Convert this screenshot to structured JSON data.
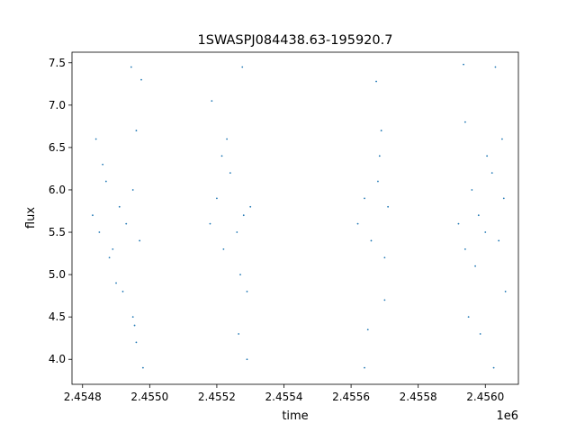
{
  "chart_data": {
    "type": "scatter",
    "title": "1SWASPJ084438.63-195920.7",
    "xlabel": "time",
    "ylabel": "flux",
    "x_offset_label": "1e6",
    "xlim": [
      2454768.5,
      2456098.5
    ],
    "ylim": [
      3.705,
      7.625
    ],
    "grid": false,
    "legend": "none",
    "marker_color": "#1f77b4",
    "x_ticks": [
      2454800,
      2455000,
      2455200,
      2455400,
      2455600,
      2455800,
      2456000
    ],
    "x_tick_labels": [
      "2.4548",
      "2.4550",
      "2.4552",
      "2.4554",
      "2.4556",
      "2.4558",
      "2.4560"
    ],
    "y_ticks": [
      4.0,
      4.5,
      5.0,
      5.5,
      6.0,
      6.5,
      7.0,
      7.5
    ],
    "y_tick_labels": [
      "4.0",
      "4.5",
      "5.0",
      "5.5",
      "6.0",
      "6.5",
      "7.0",
      "7.5"
    ],
    "series": [
      {
        "points": [
          [
            2454830,
            5.7
          ],
          [
            2454850,
            5.5
          ],
          [
            2454870,
            6.1
          ],
          [
            2454890,
            5.3
          ],
          [
            2454910,
            5.8
          ],
          [
            2454930,
            5.6
          ],
          [
            2454950,
            6.0
          ],
          [
            2454970,
            5.4
          ],
          [
            2454840,
            6.6
          ],
          [
            2454900,
            4.9
          ],
          [
            2454960,
            6.7
          ],
          [
            2454920,
            4.8
          ],
          [
            2454950,
            4.5
          ],
          [
            2454955,
            4.4
          ],
          [
            2454945,
            7.45
          ],
          [
            2454975,
            7.3
          ],
          [
            2454980,
            3.9
          ],
          [
            2454960,
            4.2
          ],
          [
            2454860,
            6.3
          ],
          [
            2454880,
            5.2
          ],
          [
            2455180,
            5.6
          ],
          [
            2455200,
            5.9
          ],
          [
            2455220,
            5.3
          ],
          [
            2455240,
            6.2
          ],
          [
            2455260,
            5.5
          ],
          [
            2455280,
            5.7
          ],
          [
            2455300,
            5.8
          ],
          [
            2455230,
            6.6
          ],
          [
            2455270,
            5.0
          ],
          [
            2455290,
            4.8
          ],
          [
            2455185,
            7.05
          ],
          [
            2455276,
            7.45
          ],
          [
            2455265,
            4.3
          ],
          [
            2455290,
            4.0
          ],
          [
            2455215,
            6.4
          ],
          [
            2455620,
            5.6
          ],
          [
            2455640,
            5.9
          ],
          [
            2455660,
            5.4
          ],
          [
            2455680,
            6.1
          ],
          [
            2455700,
            5.2
          ],
          [
            2455710,
            5.8
          ],
          [
            2455690,
            6.7
          ],
          [
            2455700,
            4.7
          ],
          [
            2455675,
            7.28
          ],
          [
            2455650,
            4.35
          ],
          [
            2455640,
            3.9
          ],
          [
            2455685,
            6.4
          ],
          [
            2455920,
            5.6
          ],
          [
            2455940,
            5.3
          ],
          [
            2455960,
            6.0
          ],
          [
            2455980,
            5.7
          ],
          [
            2456000,
            5.5
          ],
          [
            2456020,
            6.2
          ],
          [
            2456040,
            5.4
          ],
          [
            2456055,
            5.9
          ],
          [
            2455935,
            7.48
          ],
          [
            2455940,
            6.8
          ],
          [
            2456030,
            7.45
          ],
          [
            2455985,
            4.3
          ],
          [
            2456025,
            3.9
          ],
          [
            2456050,
            6.6
          ],
          [
            2456060,
            4.8
          ],
          [
            2455950,
            4.5
          ],
          [
            2456005,
            6.4
          ],
          [
            2455970,
            5.1
          ]
        ]
      }
    ]
  }
}
